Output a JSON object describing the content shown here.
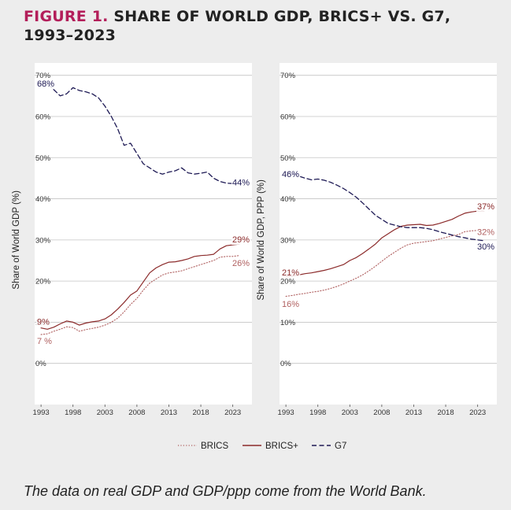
{
  "figure": {
    "label": "FIGURE 1.",
    "title": "SHARE OF WORLD GDP, BRICS+ VS. G7, 1993–2023"
  },
  "footnote": "The data on real GDP and GDP/ppp come from the World Bank.",
  "colors": {
    "brics": "#b06060",
    "bricsplus": "#8b2a2a",
    "g7": "#1e1a55",
    "grid": "#c4c4c4",
    "panel": "#ffffff",
    "title_accent": "#b31e5a"
  },
  "chart_data": [
    {
      "type": "line",
      "ylabel": "Share of World GDP (%)",
      "xlabel": "",
      "x_ticks": [
        1993,
        1998,
        2003,
        2008,
        2013,
        2018,
        2023
      ],
      "xlim": [
        1992,
        2026
      ],
      "ylim": [
        -10,
        73
      ],
      "y_ticks": [
        0,
        10,
        20,
        30,
        40,
        50,
        60,
        70
      ],
      "y_tick_labels": [
        "0%",
        "10%",
        "20%",
        "30%",
        "40%",
        "50%",
        "60%",
        "70%"
      ],
      "grid": true,
      "series": [
        {
          "name": "BRICS",
          "style": "dotted",
          "x": [
            1993,
            1994,
            1995,
            1996,
            1997,
            1998,
            1999,
            2000,
            2001,
            2002,
            2003,
            2004,
            2005,
            2006,
            2007,
            2008,
            2009,
            2010,
            2011,
            2012,
            2013,
            2014,
            2015,
            2016,
            2017,
            2018,
            2019,
            2020,
            2021,
            2022,
            2023,
            2024
          ],
          "y": [
            7.0,
            7.2,
            7.8,
            8.3,
            8.9,
            8.7,
            7.8,
            8.2,
            8.5,
            8.8,
            9.3,
            10.0,
            11.0,
            12.5,
            14.3,
            15.8,
            17.8,
            19.5,
            20.5,
            21.5,
            22.0,
            22.2,
            22.5,
            23.0,
            23.5,
            24.0,
            24.5,
            25.0,
            25.8,
            26.0,
            26.0,
            26.2
          ]
        },
        {
          "name": "BRICS+",
          "style": "solid",
          "x": [
            1993,
            1994,
            1995,
            1996,
            1997,
            1998,
            1999,
            2000,
            2001,
            2002,
            2003,
            2004,
            2005,
            2006,
            2007,
            2008,
            2009,
            2010,
            2011,
            2012,
            2013,
            2014,
            2015,
            2016,
            2017,
            2018,
            2019,
            2020,
            2021,
            2022,
            2023,
            2024
          ],
          "y": [
            8.6,
            8.3,
            8.8,
            9.6,
            10.3,
            10.0,
            9.3,
            9.8,
            10.1,
            10.3,
            10.8,
            11.8,
            13.2,
            14.8,
            16.6,
            17.6,
            19.8,
            22.0,
            23.2,
            24.0,
            24.6,
            24.7,
            25.0,
            25.4,
            26.0,
            26.2,
            26.3,
            26.5,
            27.8,
            28.6,
            28.8,
            29.0
          ]
        },
        {
          "name": "G7",
          "style": "dashed",
          "x": [
            1993,
            1994,
            1995,
            1996,
            1997,
            1998,
            1999,
            2000,
            2001,
            2002,
            2003,
            2004,
            2005,
            2006,
            2007,
            2008,
            2009,
            2010,
            2011,
            2012,
            2013,
            2014,
            2015,
            2016,
            2017,
            2018,
            2019,
            2020,
            2021,
            2022,
            2023,
            2024
          ],
          "y": [
            68.0,
            68.0,
            66.5,
            65.0,
            65.5,
            67.0,
            66.3,
            66.0,
            65.5,
            64.5,
            62.5,
            60.0,
            57.0,
            53.0,
            53.5,
            51.0,
            48.5,
            47.5,
            46.5,
            46.0,
            46.5,
            46.8,
            47.5,
            46.3,
            46.0,
            46.2,
            46.5,
            45.0,
            44.2,
            43.8,
            43.7,
            44.0
          ]
        }
      ],
      "annotations": [
        {
          "text": "68%",
          "series": "G7",
          "x": 1993,
          "y": 68,
          "side": "start"
        },
        {
          "text": "44%",
          "series": "G7",
          "x": 2024,
          "y": 44,
          "side": "end"
        },
        {
          "text": "29%",
          "series": "BRICS+",
          "x": 2024,
          "y": 29,
          "side": "end-above"
        },
        {
          "text": "26%",
          "series": "BRICS",
          "x": 2024,
          "y": 26,
          "side": "end-below"
        },
        {
          "text": "9%",
          "series": "BRICS+",
          "x": 1993,
          "y": 9,
          "side": "start-above"
        },
        {
          "text": "7 %",
          "series": "BRICS",
          "x": 1993,
          "y": 7,
          "side": "start-below"
        }
      ]
    },
    {
      "type": "line",
      "ylabel": "Share of World GDP, PPP (%)",
      "xlabel": "",
      "x_ticks": [
        1993,
        1998,
        2003,
        2008,
        2013,
        2018,
        2023
      ],
      "xlim": [
        1992,
        2026
      ],
      "ylim": [
        -10,
        73
      ],
      "y_ticks": [
        0,
        10,
        20,
        30,
        40,
        50,
        60,
        70
      ],
      "y_tick_labels": [
        "0%",
        "10%",
        "20%",
        "30%",
        "40%",
        "50%",
        "60%",
        "70%"
      ],
      "grid": true,
      "series": [
        {
          "name": "BRICS",
          "style": "dotted",
          "x": [
            1993,
            1994,
            1995,
            1996,
            1997,
            1998,
            1999,
            2000,
            2001,
            2002,
            2003,
            2004,
            2005,
            2006,
            2007,
            2008,
            2009,
            2010,
            2011,
            2012,
            2013,
            2014,
            2015,
            2016,
            2017,
            2018,
            2019,
            2020,
            2021,
            2022,
            2023,
            2024
          ],
          "y": [
            16.3,
            16.5,
            16.8,
            17.0,
            17.3,
            17.5,
            17.8,
            18.2,
            18.7,
            19.3,
            20.0,
            20.7,
            21.5,
            22.5,
            23.6,
            24.8,
            26.0,
            27.0,
            28.0,
            28.8,
            29.2,
            29.4,
            29.6,
            29.8,
            30.2,
            30.6,
            31.0,
            31.3,
            32.0,
            32.2,
            32.3,
            32.5
          ]
        },
        {
          "name": "BRICS+",
          "style": "solid",
          "x": [
            1993,
            1994,
            1995,
            1996,
            1997,
            1998,
            1999,
            2000,
            2001,
            2002,
            2003,
            2004,
            2005,
            2006,
            2007,
            2008,
            2009,
            2010,
            2011,
            2012,
            2013,
            2014,
            2015,
            2016,
            2017,
            2018,
            2019,
            2020,
            2021,
            2022,
            2023,
            2024
          ],
          "y": [
            21.0,
            21.2,
            21.5,
            21.8,
            22.0,
            22.3,
            22.6,
            23.0,
            23.5,
            24.0,
            25.0,
            25.7,
            26.7,
            27.8,
            29.0,
            30.5,
            31.5,
            32.5,
            33.3,
            33.6,
            33.7,
            33.8,
            33.5,
            33.6,
            34.0,
            34.5,
            35.0,
            35.8,
            36.5,
            36.8,
            37.0,
            37.0
          ]
        },
        {
          "name": "G7",
          "style": "dashed",
          "x": [
            1993,
            1994,
            1995,
            1996,
            1997,
            1998,
            1999,
            2000,
            2001,
            2002,
            2003,
            2004,
            2005,
            2006,
            2007,
            2008,
            2009,
            2010,
            2011,
            2012,
            2013,
            2014,
            2015,
            2016,
            2017,
            2018,
            2019,
            2020,
            2021,
            2022,
            2023,
            2024
          ],
          "y": [
            46.5,
            46.3,
            45.5,
            45.0,
            44.6,
            44.8,
            44.5,
            44.0,
            43.3,
            42.5,
            41.5,
            40.4,
            39.0,
            37.5,
            36.0,
            35.0,
            34.0,
            33.6,
            33.2,
            33.0,
            33.0,
            33.0,
            32.8,
            32.5,
            32.0,
            31.6,
            31.2,
            30.8,
            30.5,
            30.2,
            30.0,
            29.8
          ]
        }
      ],
      "annotations": [
        {
          "text": "46%",
          "series": "G7",
          "x": 1993,
          "y": 46,
          "side": "start"
        },
        {
          "text": "37%",
          "series": "BRICS+",
          "x": 2024,
          "y": 37,
          "side": "end-above"
        },
        {
          "text": "32%",
          "series": "BRICS",
          "x": 2024,
          "y": 32,
          "side": "end"
        },
        {
          "text": "30%",
          "series": "G7",
          "x": 2024,
          "y": 30,
          "side": "end-below"
        },
        {
          "text": "21%",
          "series": "BRICS+",
          "x": 1993,
          "y": 21,
          "side": "start-above"
        },
        {
          "text": "16%",
          "series": "BRICS",
          "x": 1993,
          "y": 16,
          "side": "start-below"
        }
      ]
    }
  ],
  "legend": {
    "placement": "bottom-center",
    "items": [
      {
        "label": "BRICS",
        "style": "dotted",
        "series": "BRICS"
      },
      {
        "label": "BRICS+",
        "style": "solid",
        "series": "BRICS+"
      },
      {
        "label": "G7",
        "style": "dashed",
        "series": "G7"
      }
    ]
  }
}
